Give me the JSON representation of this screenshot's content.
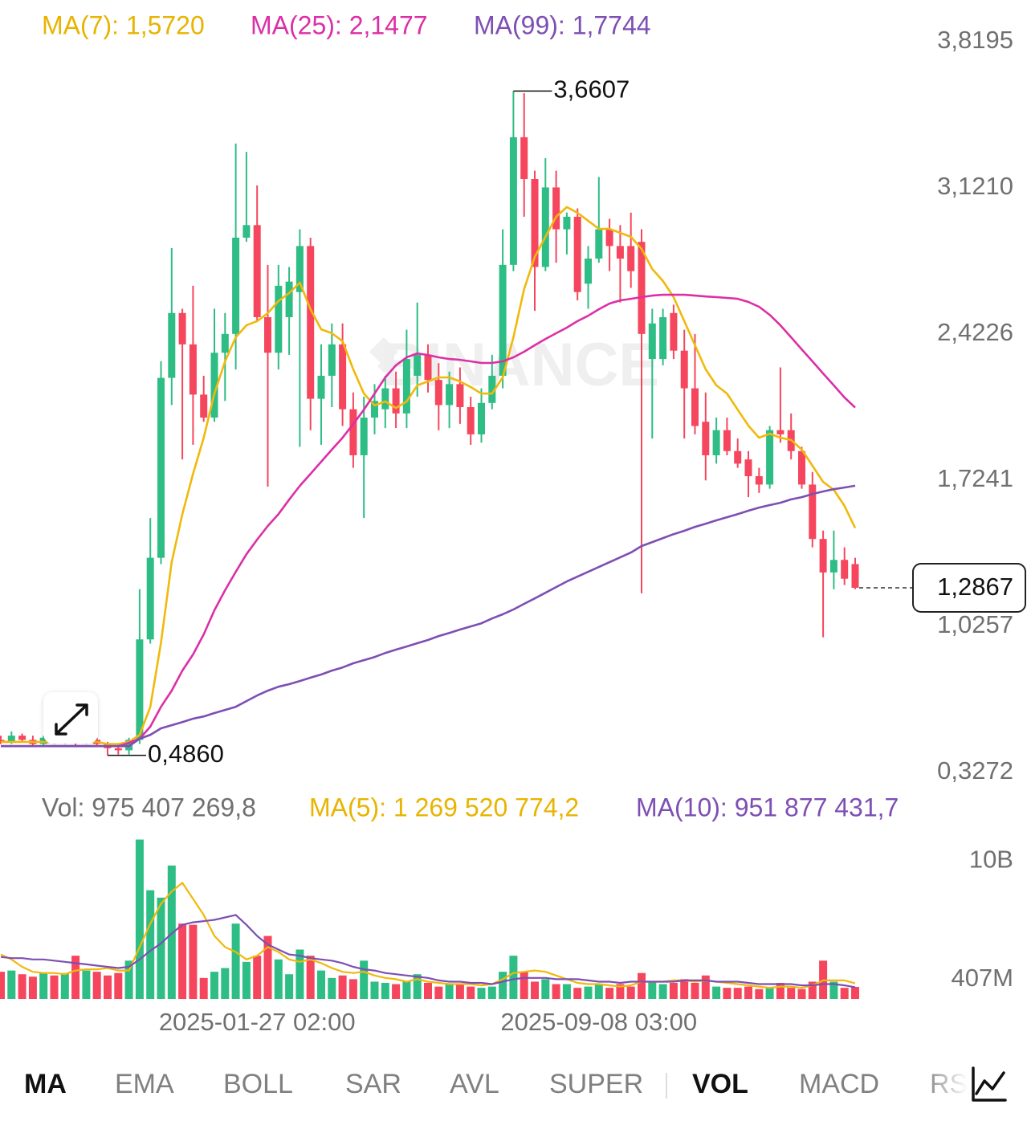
{
  "chart_data": [
    {
      "type": "candlestick",
      "categories": [
        null,
        null,
        null,
        null,
        null,
        null,
        null,
        null,
        null,
        null,
        null,
        null,
        null,
        null,
        null,
        null,
        null,
        null,
        null,
        null,
        null,
        null,
        null,
        null,
        "2025-01-27 02:00",
        null,
        null,
        null,
        null,
        null,
        null,
        null,
        null,
        null,
        null,
        null,
        null,
        null,
        null,
        null,
        null,
        null,
        null,
        null,
        null,
        null,
        null,
        null,
        null,
        null,
        null,
        null,
        null,
        null,
        null,
        null,
        "2025-09-08 03:00",
        null,
        null,
        null,
        null,
        null,
        null,
        null,
        null,
        null,
        null,
        null,
        null,
        null,
        null,
        null,
        null,
        null,
        null,
        null,
        null,
        null,
        null,
        null,
        null
      ],
      "open": [
        0.56,
        0.55,
        0.58,
        0.56,
        0.54,
        0.57,
        0.55,
        0.56,
        0.55,
        0.56,
        0.54,
        0.52,
        0.51,
        0.56,
        1.04,
        1.43,
        2.29,
        2.6,
        2.45,
        2.21,
        2.1,
        2.41,
        2.5,
        2.96,
        3.02,
        2.58,
        2.41,
        2.58,
        2.7,
        2.92,
        2.19,
        2.3,
        2.45,
        2.14,
        1.92,
        2.1,
        2.14,
        2.24,
        2.12,
        2.3,
        2.4,
        2.28,
        2.16,
        2.26,
        2.15,
        2.02,
        2.17,
        2.3,
        2.83,
        3.44,
        3.24,
        2.82,
        3.2,
        3.0,
        3.06,
        2.74,
        2.86,
        3.0,
        2.92,
        2.92,
        2.94,
        2.38,
        2.38,
        2.6,
        2.42,
        2.24,
        2.08,
        1.92,
        2.04,
        1.94,
        1.9,
        1.82,
        1.78,
        2.04,
        2.04,
        1.94,
        1.78,
        1.52,
        1.36,
        1.42,
        1.4
      ],
      "high": [
        0.58,
        0.6,
        0.59,
        0.58,
        0.58,
        0.58,
        0.57,
        0.62,
        0.57,
        0.57,
        0.55,
        0.54,
        0.57,
        1.28,
        1.62,
        2.37,
        2.91,
        2.62,
        2.73,
        2.3,
        2.62,
        2.6,
        3.41,
        3.37,
        3.21,
        2.83,
        2.83,
        2.82,
        3.0,
        2.96,
        2.45,
        2.55,
        2.55,
        2.22,
        2.2,
        2.26,
        2.3,
        2.32,
        2.52,
        2.65,
        2.45,
        2.36,
        2.32,
        2.34,
        2.2,
        2.24,
        2.4,
        3.0,
        3.6607,
        3.65,
        3.28,
        3.34,
        3.28,
        3.08,
        3.1,
        2.92,
        3.25,
        3.05,
        3.02,
        3.08,
        3.0,
        2.62,
        2.62,
        2.64,
        2.52,
        2.5,
        2.22,
        2.1,
        2.1,
        2.0,
        1.94,
        1.86,
        2.06,
        2.34,
        2.12,
        1.96,
        1.84,
        1.56,
        1.56,
        1.48,
        1.43
      ],
      "low": [
        0.54,
        0.54,
        0.55,
        0.53,
        0.53,
        0.54,
        0.54,
        0.53,
        0.54,
        0.53,
        0.486,
        0.49,
        0.49,
        0.54,
        1.02,
        1.4,
        2.16,
        1.9,
        1.97,
        2.08,
        2.08,
        2.18,
        2.33,
        2.94,
        2.56,
        1.77,
        2.33,
        2.4,
        1.96,
        2.04,
        1.97,
        2.15,
        2.06,
        1.86,
        1.62,
        2.02,
        2.05,
        2.05,
        2.05,
        2.2,
        2.22,
        2.04,
        2.05,
        2.07,
        1.97,
        1.98,
        2.14,
        2.24,
        2.8,
        3.06,
        2.61,
        2.8,
        2.84,
        2.88,
        2.66,
        2.62,
        2.84,
        2.8,
        2.65,
        2.72,
        1.26,
        2.0,
        2.35,
        2.38,
        2.0,
        2.02,
        1.8,
        1.88,
        1.92,
        1.86,
        1.72,
        1.74,
        1.76,
        1.98,
        1.9,
        1.76,
        1.48,
        1.05,
        1.28,
        1.3,
        1.28
      ],
      "close": [
        0.55,
        0.58,
        0.56,
        0.54,
        0.57,
        0.55,
        0.56,
        0.55,
        0.56,
        0.54,
        0.52,
        0.51,
        0.56,
        1.04,
        1.43,
        2.29,
        2.6,
        2.45,
        2.21,
        2.1,
        2.41,
        2.5,
        2.96,
        3.02,
        2.58,
        2.41,
        2.73,
        2.75,
        2.92,
        2.19,
        2.3,
        2.45,
        2.14,
        1.92,
        2.1,
        2.18,
        2.24,
        2.12,
        2.38,
        2.4,
        2.28,
        2.16,
        2.26,
        2.15,
        2.02,
        2.17,
        2.3,
        2.83,
        3.44,
        3.24,
        2.82,
        3.2,
        3.0,
        3.06,
        2.7,
        2.86,
        3.0,
        2.92,
        2.86,
        2.8,
        2.5,
        2.55,
        2.58,
        2.42,
        2.24,
        2.06,
        1.92,
        2.04,
        1.94,
        1.88,
        1.82,
        1.78,
        2.04,
        2.02,
        1.94,
        1.78,
        1.52,
        1.36,
        1.42,
        1.33,
        1.2867
      ],
      "up_color": "#2ebd85",
      "down_color": "#f6465d",
      "ylim": [
        0.3272,
        3.8195
      ],
      "yticks": [
        {
          "value": 3.8195,
          "label": "3,8195"
        },
        {
          "value": 3.121,
          "label": "3,1210"
        },
        {
          "value": 2.4226,
          "label": "2,4226"
        },
        {
          "value": 1.7241,
          "label": "1,7241"
        },
        {
          "value": 1.0257,
          "label": "1,0257"
        },
        {
          "value": 0.3272,
          "label": "0,3272"
        }
      ],
      "series": [
        {
          "name": "MA(7)",
          "color": "#f0b90b",
          "values": [
            0.55,
            0.55,
            0.55,
            0.55,
            0.55,
            0.55,
            0.55,
            0.55,
            0.55,
            0.55,
            0.54,
            0.54,
            0.55,
            0.584,
            0.718,
            1.025,
            1.409,
            1.639,
            1.831,
            2.004,
            2.215,
            2.369,
            2.484,
            2.541,
            2.561,
            2.599,
            2.657,
            2.695,
            2.745,
            2.618,
            2.522,
            2.503,
            2.465,
            2.331,
            2.215,
            2.158,
            2.177,
            2.146,
            2.177,
            2.254,
            2.273,
            2.292,
            2.292,
            2.273,
            2.246,
            2.215,
            2.215,
            2.292,
            2.484,
            2.714,
            2.868,
            2.964,
            3.06,
            3.106,
            3.079,
            3.041,
            3.002,
            3.002,
            2.983,
            2.964,
            2.906,
            2.81,
            2.753,
            2.676,
            2.561,
            2.446,
            2.331,
            2.254,
            2.215,
            2.138,
            2.062,
            2.004,
            2.023,
            2.004,
            1.993,
            1.947,
            1.87,
            1.793,
            1.755,
            1.678,
            1.572
          ]
        },
        {
          "name": "MA(25)",
          "color": "#dc2fa6",
          "values": [
            0.53,
            0.53,
            0.53,
            0.53,
            0.53,
            0.53,
            0.53,
            0.53,
            0.53,
            0.53,
            0.53,
            0.53,
            0.546,
            0.565,
            0.623,
            0.718,
            0.795,
            0.891,
            0.968,
            1.064,
            1.179,
            1.275,
            1.363,
            1.447,
            1.517,
            1.582,
            1.639,
            1.708,
            1.774,
            1.831,
            1.889,
            1.947,
            2.004,
            2.069,
            2.138,
            2.215,
            2.292,
            2.35,
            2.388,
            2.407,
            2.399,
            2.388,
            2.38,
            2.376,
            2.369,
            2.361,
            2.361,
            2.369,
            2.388,
            2.415,
            2.446,
            2.476,
            2.503,
            2.53,
            2.561,
            2.587,
            2.618,
            2.645,
            2.66,
            2.668,
            2.676,
            2.683,
            2.687,
            2.687,
            2.687,
            2.683,
            2.679,
            2.676,
            2.672,
            2.668,
            2.653,
            2.63,
            2.591,
            2.541,
            2.484,
            2.426,
            2.369,
            2.311,
            2.254,
            2.196,
            2.1477
          ]
        },
        {
          "name": "MA(99)",
          "color": "#7d4fb3",
          "values": [
            0.53,
            0.53,
            0.53,
            0.53,
            0.53,
            0.53,
            0.53,
            0.53,
            0.53,
            0.53,
            0.53,
            0.53,
            0.53,
            0.565,
            0.584,
            0.615,
            0.63,
            0.645,
            0.661,
            0.672,
            0.688,
            0.703,
            0.718,
            0.745,
            0.772,
            0.795,
            0.814,
            0.826,
            0.841,
            0.857,
            0.872,
            0.891,
            0.906,
            0.926,
            0.941,
            0.956,
            0.975,
            0.991,
            1.006,
            1.022,
            1.037,
            1.056,
            1.071,
            1.087,
            1.102,
            1.117,
            1.14,
            1.16,
            1.183,
            1.21,
            1.236,
            1.263,
            1.29,
            1.317,
            1.34,
            1.363,
            1.386,
            1.409,
            1.432,
            1.455,
            1.486,
            1.505,
            1.524,
            1.543,
            1.559,
            1.578,
            1.593,
            1.609,
            1.624,
            1.639,
            1.655,
            1.67,
            1.682,
            1.693,
            1.709,
            1.72,
            1.735,
            1.747,
            1.758,
            1.766,
            1.7744
          ]
        }
      ],
      "legend": [
        "MA(7): 1,5720",
        "MA(25): 2,1477",
        "MA(99): 1,7744"
      ],
      "annotations": [
        {
          "value": 3.6607,
          "label": "3,6607"
        },
        {
          "value": 0.486,
          "label": "0,4860"
        }
      ],
      "last_price": {
        "value": 1.2867,
        "label": "1,2867"
      },
      "watermark": "BINANCE"
    },
    {
      "type": "bar",
      "values": [
        2.2,
        2.3,
        2.0,
        1.8,
        2.1,
        1.9,
        2.1,
        3.5,
        2.3,
        2.2,
        1.9,
        2.1,
        3.1,
        12.9,
        8.8,
        8.2,
        10.8,
        6.1,
        6.0,
        1.7,
        2.2,
        2.5,
        6.1,
        3.0,
        3.5,
        5.1,
        3.2,
        2.0,
        4.0,
        3.5,
        2.3,
        1.7,
        1.9,
        1.6,
        3.1,
        1.4,
        1.3,
        1.2,
        1.4,
        2.0,
        1.3,
        1.0,
        1.2,
        1.2,
        1.0,
        0.9,
        1.0,
        2.2,
        3.5,
        2.2,
        1.4,
        1.6,
        1.2,
        1.2,
        0.9,
        1.0,
        1.2,
        0.9,
        1.2,
        1.0,
        2.1,
        1.4,
        1.2,
        1.3,
        1.6,
        1.3,
        1.9,
        1.0,
        0.9,
        0.9,
        1.0,
        0.8,
        0.9,
        1.3,
        0.9,
        0.8,
        1.4,
        3.1,
        1.4,
        0.9,
        0.9754072698
      ],
      "ylim": [
        0,
        13
      ],
      "yticks": [
        {
          "value": 10,
          "label": "10B"
        },
        {
          "value": 0.407,
          "label": "407M"
        }
      ],
      "series": [
        {
          "name": "MA(5)",
          "color": "#f0b90b",
          "values": [
            3.6,
            3.2,
            2.6,
            2.2,
            2.1,
            2.1,
            2.0,
            2.3,
            2.4,
            2.4,
            2.5,
            2.3,
            2.3,
            4.2,
            6.1,
            7.7,
            8.7,
            9.4,
            8.1,
            6.8,
            5.1,
            4.2,
            3.8,
            3.2,
            3.5,
            4.2,
            3.8,
            3.2,
            3.0,
            3.2,
            2.9,
            2.5,
            2.2,
            2.1,
            2.2,
            1.9,
            1.7,
            1.6,
            1.4,
            1.6,
            1.4,
            1.3,
            1.2,
            1.2,
            1.2,
            1.1,
            1.2,
            1.6,
            2.1,
            2.2,
            2.3,
            2.2,
            1.9,
            1.6,
            1.3,
            1.2,
            1.2,
            1.1,
            1.0,
            1.1,
            1.4,
            1.4,
            1.4,
            1.5,
            1.5,
            1.4,
            1.5,
            1.4,
            1.3,
            1.2,
            1.1,
            1.0,
            0.9,
            1.0,
            1.0,
            0.9,
            1.1,
            1.5,
            1.5,
            1.5,
            1.2695207742
          ]
        },
        {
          "name": "MA(10)",
          "color": "#7d4fb3",
          "values": [
            3.4,
            3.3,
            3.3,
            3.2,
            3.2,
            3.1,
            3.0,
            2.9,
            2.8,
            2.7,
            2.6,
            2.5,
            2.6,
            3.2,
            3.9,
            4.5,
            5.3,
            6.0,
            6.2,
            6.3,
            6.4,
            6.6,
            6.8,
            6.0,
            5.1,
            4.4,
            4.0,
            3.6,
            3.5,
            3.3,
            3.2,
            3.1,
            2.9,
            2.6,
            2.4,
            2.3,
            2.1,
            2.0,
            1.9,
            1.8,
            1.7,
            1.5,
            1.4,
            1.4,
            1.3,
            1.3,
            1.2,
            1.4,
            1.6,
            1.7,
            1.7,
            1.7,
            1.6,
            1.6,
            1.6,
            1.5,
            1.4,
            1.4,
            1.3,
            1.4,
            1.4,
            1.4,
            1.4,
            1.4,
            1.5,
            1.5,
            1.5,
            1.4,
            1.4,
            1.4,
            1.3,
            1.2,
            1.2,
            1.2,
            1.2,
            1.1,
            1.1,
            1.2,
            1.2,
            1.1,
            0.9518774317
          ]
        }
      ],
      "legend": [
        "Vol: 975 407 269,8",
        "MA(5): 1 269 520 774,2",
        "MA(10): 951 877 431,7"
      ]
    }
  ],
  "tabs": [
    "MA",
    "EMA",
    "BOLL",
    "SAR",
    "AVL",
    "SUPER",
    "VOL",
    "MACD",
    "RS"
  ]
}
